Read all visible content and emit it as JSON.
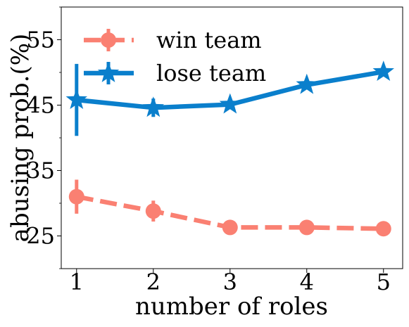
{
  "chart_data": {
    "type": "line",
    "xlabel": "number of roles",
    "ylabel": "abusing prob.(%)",
    "xlim": [
      0.8,
      5.25
    ],
    "ylim": [
      20,
      60
    ],
    "x": [
      1,
      2,
      3,
      4,
      5
    ],
    "xticks": [
      "1",
      "2",
      "3",
      "4",
      "5"
    ],
    "yticks": [
      25,
      35,
      45,
      55
    ],
    "ytick_labels": [
      "25",
      "35",
      "45",
      "55"
    ],
    "grid": false,
    "legend_position": "top-left",
    "series": [
      {
        "name": "win team",
        "values": [
          31,
          28.8,
          26.3,
          26.3,
          26.1
        ],
        "error": [
          2.6,
          1.6,
          0,
          0,
          0
        ],
        "color": "#fa8072",
        "line_style": "dashed",
        "marker": "circle"
      },
      {
        "name": "lose team",
        "values": [
          45.8,
          44.6,
          45.1,
          48.1,
          50.1
        ],
        "error": [
          5.5,
          1.4,
          0,
          0,
          0
        ],
        "color": "#0a7fcc",
        "line_style": "solid",
        "marker": "star"
      }
    ]
  }
}
